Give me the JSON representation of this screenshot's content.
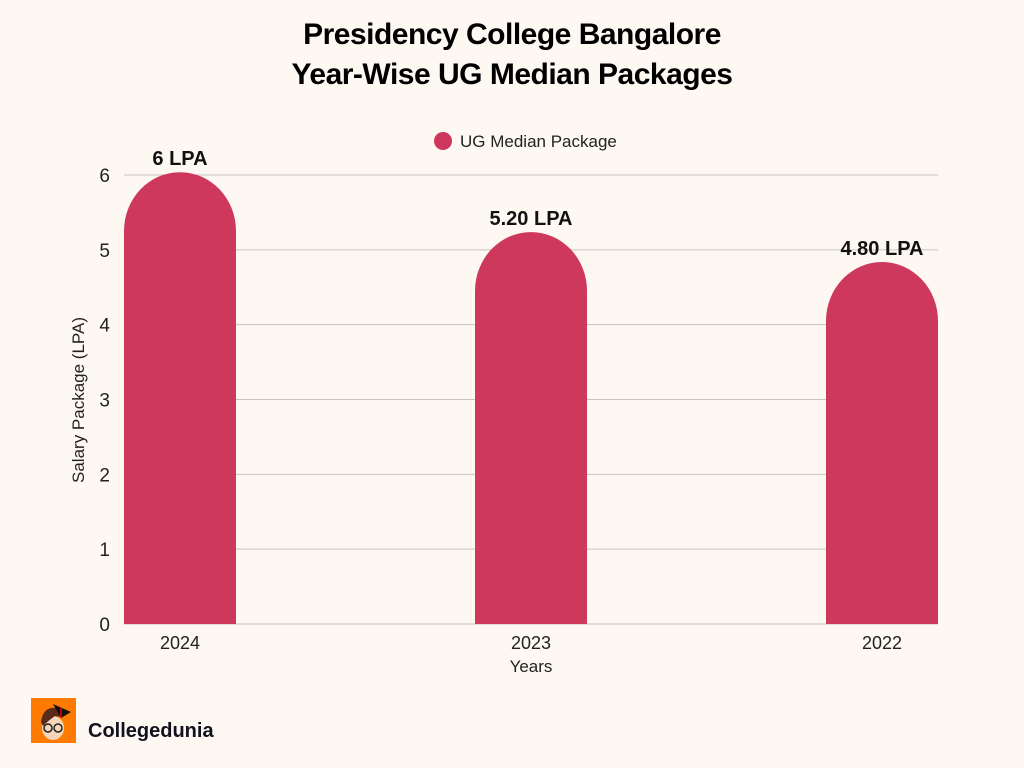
{
  "chart_data": {
    "type": "bar",
    "title": "Presidency College Bangalore",
    "subtitle": "Year-Wise UG Median Packages",
    "categories": [
      "2024",
      "2023",
      "2022"
    ],
    "series": [
      {
        "name": "UG Median Package",
        "values": [
          6,
          5.2,
          4.8
        ]
      }
    ],
    "data_labels": [
      "6 LPA",
      "5.20 LPA",
      "4.80 LPA"
    ],
    "xlabel": "Years",
    "ylabel": "Salary Package (LPA)",
    "ylim": [
      0,
      6
    ],
    "yticks": [
      0,
      1,
      2,
      3,
      4,
      5,
      6
    ],
    "grid": true,
    "legend": "top-center",
    "bar_color": "#cf385d"
  },
  "brand": {
    "name": "Collegedunia"
  }
}
